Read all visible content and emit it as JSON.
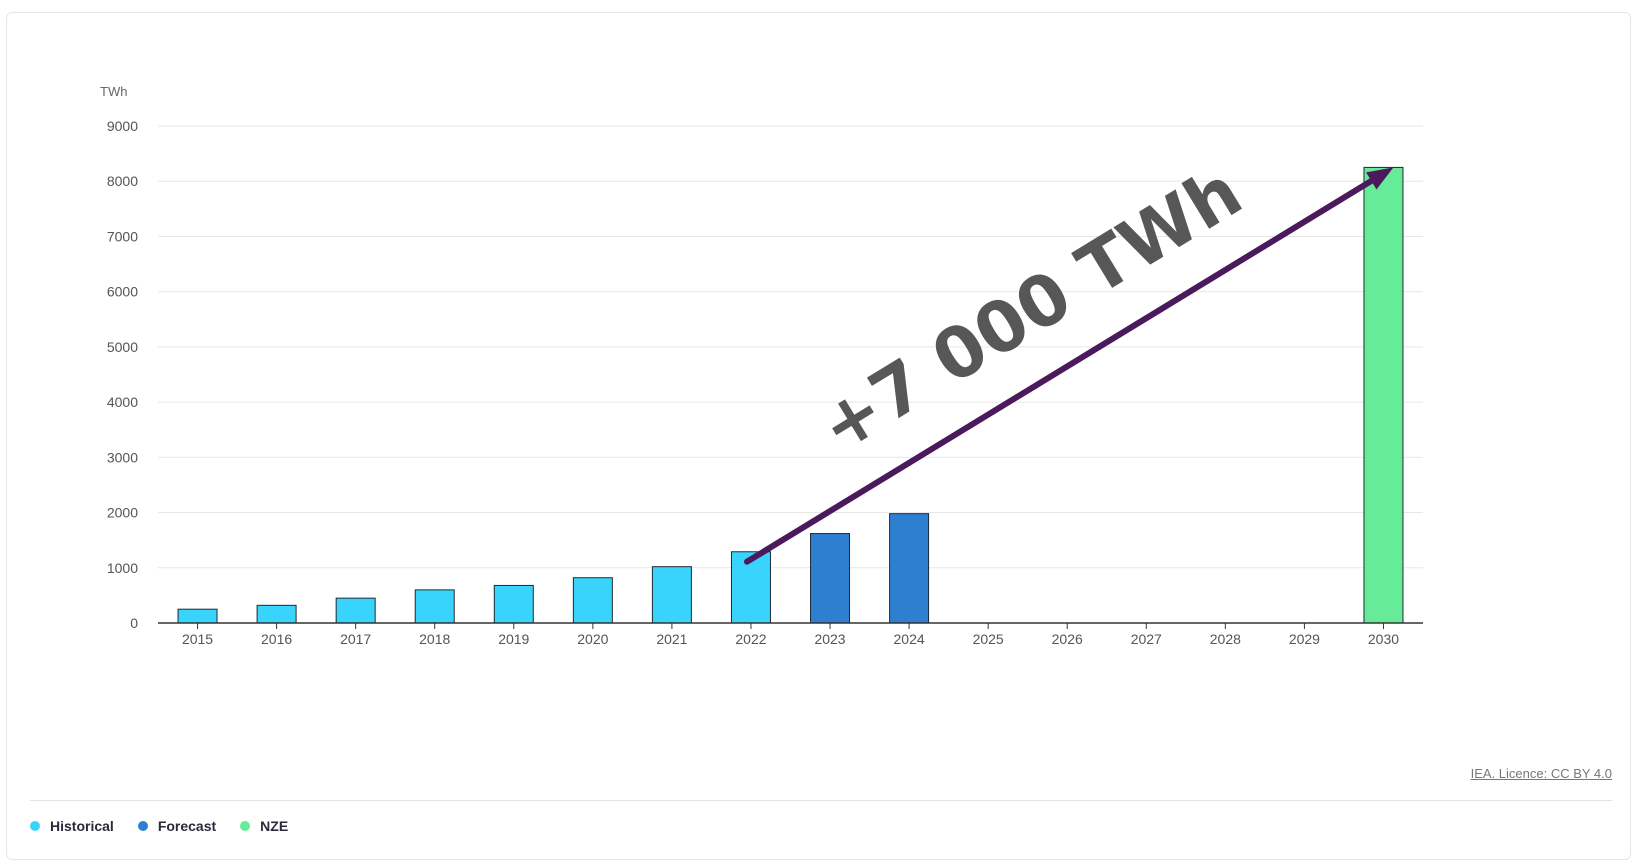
{
  "chart_data": {
    "type": "bar",
    "ylabel": "TWh",
    "ylim": [
      0,
      9000
    ],
    "yticks": [
      0,
      1000,
      2000,
      3000,
      4000,
      5000,
      6000,
      7000,
      8000,
      9000
    ],
    "grid": true,
    "categories": [
      "2015",
      "2016",
      "2017",
      "2018",
      "2019",
      "2020",
      "2021",
      "2022",
      "2023",
      "2024",
      "2025",
      "2026",
      "2027",
      "2028",
      "2029",
      "2030"
    ],
    "series": [
      {
        "name": "Historical",
        "color": "#38d4fb",
        "values": [
          250,
          320,
          450,
          600,
          680,
          820,
          1020,
          1290,
          null,
          null,
          null,
          null,
          null,
          null,
          null,
          null
        ]
      },
      {
        "name": "Forecast",
        "color": "#2f7fd1",
        "values": [
          null,
          null,
          null,
          null,
          null,
          null,
          null,
          null,
          1620,
          1980,
          null,
          null,
          null,
          null,
          null,
          null
        ]
      },
      {
        "name": "NZE",
        "color": "#66ec98",
        "values": [
          null,
          null,
          null,
          null,
          null,
          null,
          null,
          null,
          null,
          null,
          null,
          null,
          null,
          null,
          null,
          8250
        ]
      }
    ],
    "annotation": {
      "text": "+7 000 TWh",
      "arrow_from": {
        "x": "2022",
        "y": 1200
      },
      "arrow_to": {
        "x": "2030",
        "y": 8250
      },
      "arrow_color": "#4a1a5c"
    },
    "legend_position": "bottom-left"
  },
  "source": {
    "licence": "IEA. Licence: CC BY 4.0"
  }
}
